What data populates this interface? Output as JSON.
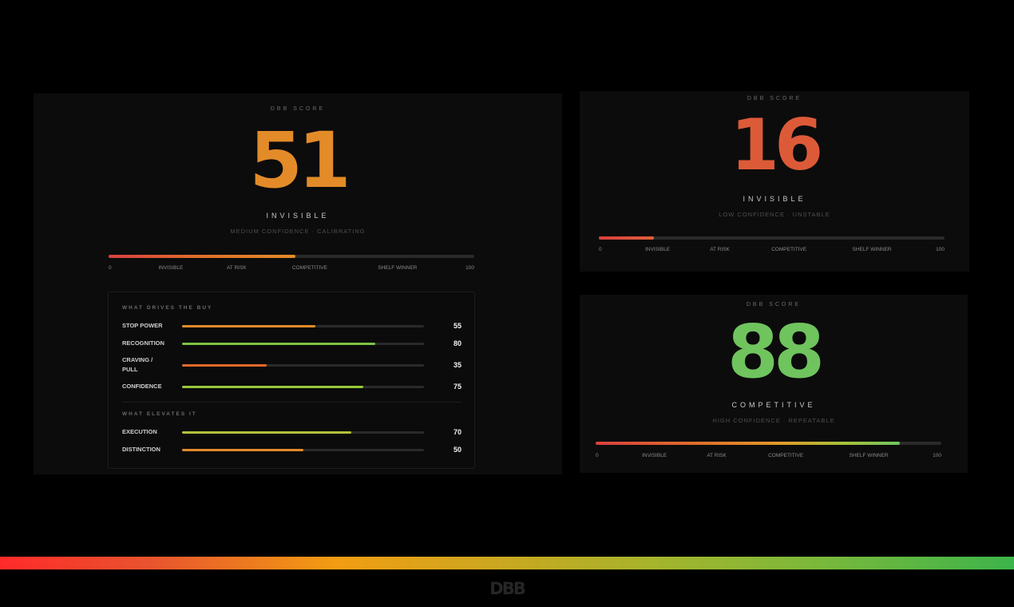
{
  "cards": [
    {
      "eyebrow": "DBB SCORE",
      "score": "51",
      "score_value": 51,
      "score_color": "#e38b28",
      "tier": "INVISIBLE",
      "confidence": "MEDIUM CONFIDENCE · CALIBRATING",
      "bar_fill_pct": 51,
      "bar_gradient": "linear-gradient(90deg, #d94040, #e0702a 50%, #e38b28)",
      "scale": [
        "0",
        "INVISIBLE",
        "AT RISK",
        "COMPETITIVE",
        "SHELF WINNER",
        "100"
      ]
    },
    {
      "eyebrow": "DBB SCORE",
      "score": "16",
      "score_value": 16,
      "score_color": "#dd5a38",
      "tier": "INVISIBLE",
      "confidence": "LOW CONFIDENCE · UNSTABLE",
      "bar_fill_pct": 16,
      "bar_gradient": "linear-gradient(90deg, #d94040, #e0603a)",
      "scale": [
        "0",
        "INVISIBLE",
        "AT RISK",
        "COMPETITIVE",
        "SHELF WINNER",
        "100"
      ]
    },
    {
      "eyebrow": "DBB SCORE",
      "score": "88",
      "score_value": 88,
      "score_color": "#6fc45e",
      "tier": "COMPETITIVE",
      "confidence": "HIGH CONFIDENCE · REPEATABLE",
      "bar_fill_pct": 88,
      "bar_gradient": "linear-gradient(90deg, #d94040, #e0702a 35%, #e39a28 60%, #a6c23a 82%, #6fc45e)",
      "scale": [
        "0",
        "INVISIBLE",
        "AT RISK",
        "COMPETITIVE",
        "SHELF WINNER",
        "100"
      ]
    }
  ],
  "drivers": {
    "section1_title": "WHAT DRIVES THE BUY",
    "section1": [
      {
        "label": "STOP POWER",
        "value": "55",
        "pct": 55,
        "color": "#e08a2a"
      },
      {
        "label": "RECOGNITION",
        "value": "80",
        "pct": 80,
        "color": "#7cc242"
      },
      {
        "label": "CRAVING / PULL",
        "value": "35",
        "pct": 35,
        "color": "#e06a2a"
      },
      {
        "label": "CONFIDENCE",
        "value": "75",
        "pct": 75,
        "color": "#98c93a"
      }
    ],
    "section2_title": "WHAT ELEVATES IT",
    "section2": [
      {
        "label": "EXECUTION",
        "value": "70",
        "pct": 70,
        "color": "#b4c23a"
      },
      {
        "label": "DISTINCTION",
        "value": "50",
        "pct": 50,
        "color": "#e08a2a"
      }
    ]
  },
  "footer": {
    "logo": "DBB",
    "spectrum_colors": [
      "#ff2a2a",
      "#f39c12",
      "#c8a820",
      "#3cb44a"
    ]
  }
}
